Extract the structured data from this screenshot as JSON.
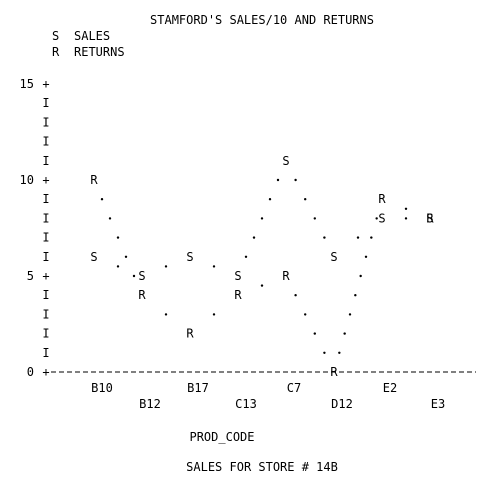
{
  "chart_data": {
    "type": "line",
    "title": "STAMFORD'S SALES/10 AND RETURNS",
    "subtitle": "SALES FOR STORE # 14B",
    "xlabel": "PROD_CODE",
    "ylabel": "",
    "ylim": [
      0,
      15
    ],
    "y_ticks": [
      "0",
      "5",
      "10",
      "15"
    ],
    "y_axis_glyph": "I",
    "categories": [
      "B10",
      "B12",
      "B17",
      "C13",
      "C7",
      "D12",
      "E2",
      "E3"
    ],
    "series": [
      {
        "name": "SALES",
        "symbol": "S",
        "values": [
          6,
          5,
          6,
          5,
          11,
          6,
          8,
          8
        ]
      },
      {
        "name": "RETURNS",
        "symbol": "R",
        "values": [
          10,
          4,
          2,
          4,
          5,
          0,
          9,
          8
        ]
      }
    ],
    "point_glyph": ".",
    "legend_position": "top-left",
    "grid": false
  }
}
